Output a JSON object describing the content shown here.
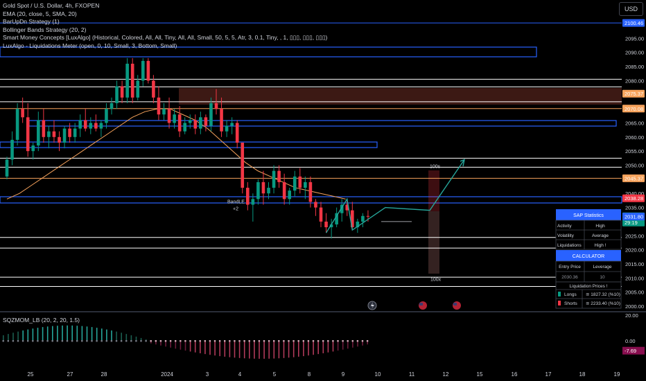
{
  "legend": {
    "title": "Gold Spot / U.S. Dollar, 4h, FXOPEN",
    "ema": "EMA (20, close, 5, SMA, 20)",
    "barupdn": "BarUpDn Strategy (1)",
    "bollinger": "Bollinger Bands Strategy (20, 2)",
    "smc": "Smart Money Concepts [LuxAlgo] (Historical, Colored, All, All, Tiny, All, All, Small, 50, 5, 5, Atr, 3, 0.1, Tiny, , 1, ▯▯▯, ▯▯▯, ▯▯▯)",
    "luxalgo": "LuxAlgo - Liquidations Meter (open, 0, 10, Small, 3, Bottom, Small)"
  },
  "currency_button": "USD",
  "oscillator_label": "SQZMOM_LB (20, 2, 20, 1.5)",
  "chart_data": {
    "type": "candlestick",
    "y_axis": {
      "ticks": [
        2000,
        2005,
        2010,
        2015,
        2020,
        2025,
        2030,
        2035,
        2040,
        2045,
        2050,
        2055,
        2060,
        2065,
        2070,
        2075,
        2080,
        2085,
        2090,
        2095,
        2100
      ],
      "tick_labels": [
        "2000.00",
        "2005.00",
        "2010.00",
        "2015.00",
        "2020.00",
        "2025.00",
        "2030.00",
        "2035.00",
        "2040.00",
        "2045.00",
        "2050.00",
        "2055.00",
        "2060.00",
        "2065.00",
        "2070.00",
        "2075.00",
        "2080.00",
        "2085.00",
        "2090.00",
        "2095.00",
        "2100.00"
      ],
      "range": [
        1998.3,
        2113.2
      ]
    },
    "x_axis": {
      "tick_labels": [
        "25",
        "27",
        "28",
        "2024",
        "3",
        "4",
        "5",
        "8",
        "9",
        "10",
        "11",
        "12",
        "15",
        "16",
        "17",
        "18",
        "19"
      ]
    },
    "price_badges": [
      {
        "label": "2100.46",
        "value": 2100.46,
        "color": "#2962ff"
      },
      {
        "label": "2075.37",
        "value": 2075.37,
        "color": "#f7a35c"
      },
      {
        "label": "2070.08",
        "value": 2070.08,
        "color": "#f7a35c"
      },
      {
        "label": "2045.37",
        "value": 2045.37,
        "color": "#f7a35c"
      },
      {
        "label": "2038.28",
        "value": 2038.28,
        "color": "#f23645"
      },
      {
        "label": "2031.88",
        "value": 2031.88,
        "color": "#089981",
        "sub": "29:19"
      },
      {
        "label": "2031.80",
        "value": 2031.8,
        "color": "#2962ff"
      }
    ],
    "candles_ohlc": [
      [
        2046,
        2053,
        2045,
        2052
      ],
      [
        2052,
        2062,
        2050,
        2059
      ],
      [
        2059,
        2072,
        2057,
        2070
      ],
      [
        2070,
        2074,
        2065,
        2067
      ],
      [
        2067,
        2072,
        2053,
        2055
      ],
      [
        2055,
        2058,
        2052,
        2057
      ],
      [
        2057,
        2069,
        2055,
        2066
      ],
      [
        2066,
        2070,
        2058,
        2060
      ],
      [
        2060,
        2064,
        2056,
        2062
      ],
      [
        2062,
        2066,
        2058,
        2060
      ],
      [
        2060,
        2062,
        2055,
        2058
      ],
      [
        2058,
        2064,
        2056,
        2063
      ],
      [
        2063,
        2065,
        2058,
        2060
      ],
      [
        2060,
        2065,
        2058,
        2063
      ],
      [
        2063,
        2068,
        2060,
        2066
      ],
      [
        2066,
        2070,
        2062,
        2063
      ],
      [
        2063,
        2067,
        2061,
        2065
      ],
      [
        2065,
        2068,
        2062,
        2063
      ],
      [
        2063,
        2066,
        2060,
        2065
      ],
      [
        2065,
        2072,
        2063,
        2070
      ],
      [
        2070,
        2074,
        2068,
        2072
      ],
      [
        2072,
        2080,
        2070,
        2078
      ],
      [
        2078,
        2080,
        2072,
        2074
      ],
      [
        2074,
        2088,
        2072,
        2086
      ],
      [
        2086,
        2088,
        2072,
        2074
      ],
      [
        2074,
        2082,
        2073,
        2080
      ],
      [
        2080,
        2088,
        2078,
        2087
      ],
      [
        2087,
        2088,
        2079,
        2080
      ],
      [
        2080,
        2082,
        2072,
        2074
      ],
      [
        2074,
        2078,
        2066,
        2068
      ],
      [
        2068,
        2072,
        2066,
        2070
      ],
      [
        2070,
        2074,
        2063,
        2065
      ],
      [
        2065,
        2070,
        2063,
        2068
      ],
      [
        2068,
        2071,
        2060,
        2062
      ],
      [
        2062,
        2067,
        2061,
        2065
      ],
      [
        2065,
        2068,
        2063,
        2066
      ],
      [
        2066,
        2068,
        2061,
        2063
      ],
      [
        2063,
        2069,
        2061,
        2067
      ],
      [
        2067,
        2068,
        2062,
        2064
      ],
      [
        2064,
        2074,
        2062,
        2072
      ],
      [
        2072,
        2077,
        2068,
        2070
      ],
      [
        2070,
        2074,
        2060,
        2062
      ],
      [
        2062,
        2066,
        2060,
        2064
      ],
      [
        2064,
        2067,
        2061,
        2065
      ],
      [
        2065,
        2066,
        2056,
        2058
      ],
      [
        2058,
        2058,
        2040,
        2042
      ],
      [
        2042,
        2044,
        2034,
        2036
      ],
      [
        2036,
        2040,
        2030,
        2038
      ],
      [
        2038,
        2045,
        2036,
        2044
      ],
      [
        2044,
        2048,
        2036,
        2040
      ],
      [
        2040,
        2044,
        2038,
        2042
      ],
      [
        2042,
        2050,
        2040,
        2048
      ],
      [
        2048,
        2050,
        2042,
        2044
      ],
      [
        2044,
        2047,
        2036,
        2038
      ],
      [
        2038,
        2042,
        2036,
        2041
      ],
      [
        2041,
        2048,
        2039,
        2046
      ],
      [
        2046,
        2049,
        2040,
        2042
      ],
      [
        2042,
        2046,
        2038,
        2044
      ],
      [
        2044,
        2046,
        2035,
        2037
      ],
      [
        2037,
        2038,
        2032,
        2035
      ],
      [
        2035,
        2037,
        2028,
        2030
      ],
      [
        2030,
        2033,
        2026,
        2028
      ],
      [
        2028,
        2031,
        2024,
        2029
      ],
      [
        2029,
        2035,
        2028,
        2033
      ],
      [
        2033,
        2038,
        2030,
        2036
      ],
      [
        2036,
        2038,
        2032,
        2034
      ],
      [
        2034,
        2037,
        2027,
        2028
      ],
      [
        2028,
        2031,
        2026,
        2030
      ],
      [
        2030,
        2033,
        2028,
        2032
      ],
      [
        2032,
        2034,
        2030,
        2031.88
      ]
    ],
    "ema_series": [
      2038,
      2040,
      2043,
      2046,
      2049,
      2052,
      2055,
      2058,
      2061,
      2064,
      2067,
      2069,
      2070,
      2070,
      2068,
      2066,
      2063,
      2059,
      2055,
      2051,
      2048,
      2046,
      2044,
      2042,
      2041,
      2040,
      2039,
      2038
    ],
    "annotations": [
      "BandLE",
      "+2",
      "100s",
      "100x"
    ],
    "oscillator": {
      "ticks": [
        20.0,
        0.0,
        -7.69
      ],
      "tick_labels": [
        "20.00",
        "0.00",
        "-7.69"
      ],
      "range": [
        -13.5,
        23.0
      ],
      "current_label": "-7.69",
      "current_value": -7.69
    }
  },
  "stats_panel": {
    "header": "SAP Statistics",
    "rows": [
      {
        "label": "Activity",
        "value": "High"
      },
      {
        "label": "Volatility",
        "value": "Average"
      },
      {
        "label": "Liquidations",
        "value": "High !"
      }
    ],
    "calculator_header": "CALCULATOR",
    "entry_label": "Entry Price",
    "leverage_label": "Leverage",
    "entry_value": "2030.36",
    "leverage_value": "10",
    "liq_header": "Liquidation Prices !",
    "longs_label": "Longs",
    "longs_value": "≅ 1827.32 (%10)",
    "shorts_label": "Shorts",
    "shorts_value": "≅ 2233.40 (%10)"
  },
  "colors": {
    "bull": "#089981",
    "bear": "#f23645",
    "ema": "#f7a35c",
    "zone_blue": "#2962ff",
    "projection": "#26a69a",
    "panel_header": "#2962ff"
  }
}
